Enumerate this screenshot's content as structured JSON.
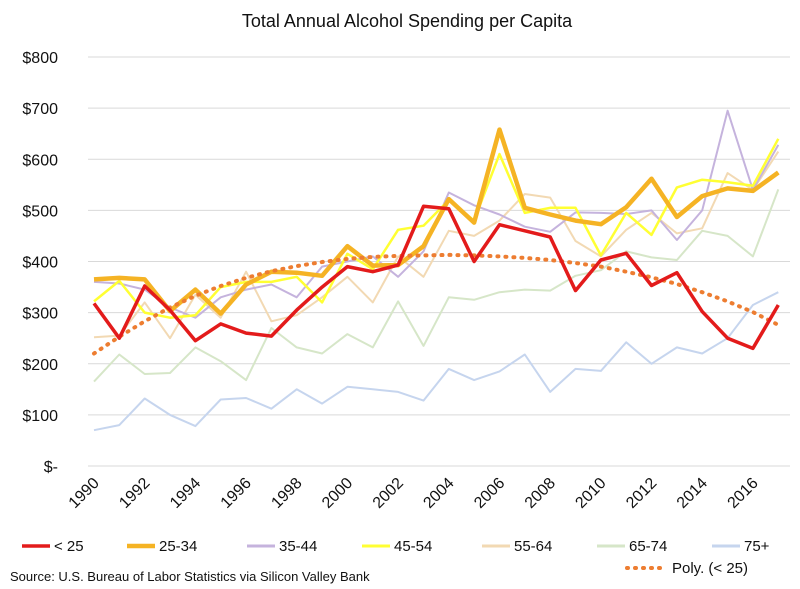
{
  "chart_data": {
    "type": "line",
    "title": "Total Annual Alcohol Spending per Capita",
    "xlabel": "",
    "ylabel": "",
    "ylim": [
      0,
      800
    ],
    "yticks": [
      0,
      100,
      200,
      300,
      400,
      500,
      600,
      700,
      800
    ],
    "ytick_labels": [
      "$-",
      "$100",
      "$200",
      "$300",
      "$400",
      "$500",
      "$600",
      "$700",
      "$800"
    ],
    "x": [
      1990,
      1991,
      1992,
      1993,
      1994,
      1995,
      1996,
      1997,
      1998,
      1999,
      2000,
      2001,
      2002,
      2003,
      2004,
      2005,
      2006,
      2007,
      2008,
      2009,
      2010,
      2011,
      2012,
      2013,
      2014,
      2015,
      2016,
      2017
    ],
    "xtick_labels": [
      "1990",
      "1992",
      "1994",
      "1996",
      "1998",
      "2000",
      "2002",
      "2004",
      "2006",
      "2008",
      "2010",
      "2012",
      "2014",
      "2016"
    ],
    "grid": true,
    "legend_position": "bottom",
    "series": [
      {
        "name": "< 25",
        "color": "#e31b1b",
        "width": 3.5,
        "values": [
          318,
          250,
          352,
          305,
          245,
          278,
          260,
          254,
          305,
          350,
          390,
          380,
          393,
          508,
          503,
          400,
          472,
          460,
          448,
          343,
          403,
          416,
          353,
          378,
          302,
          250,
          230,
          315
        ]
      },
      {
        "name": "25-34",
        "color": "#f5b324",
        "width": 4.5,
        "values": [
          365,
          368,
          365,
          303,
          345,
          298,
          355,
          380,
          378,
          372,
          430,
          392,
          393,
          430,
          522,
          476,
          658,
          505,
          492,
          480,
          473,
          506,
          562,
          487,
          528,
          543,
          538,
          574
        ]
      },
      {
        "name": "35-44",
        "color": "#c5b3dd",
        "width": 2,
        "values": [
          360,
          357,
          345,
          310,
          290,
          330,
          345,
          355,
          330,
          390,
          400,
          410,
          370,
          420,
          535,
          510,
          492,
          468,
          458,
          496,
          495,
          493,
          500,
          442,
          500,
          695,
          540,
          628
        ]
      },
      {
        "name": "45-54",
        "color": "#ffff33",
        "width": 2.5,
        "values": [
          322,
          362,
          300,
          290,
          295,
          350,
          360,
          360,
          370,
          320,
          415,
          385,
          462,
          470,
          520,
          480,
          610,
          495,
          505,
          505,
          412,
          495,
          452,
          545,
          560,
          555,
          548,
          640
        ]
      },
      {
        "name": "55-64",
        "color": "#f2d9b3",
        "width": 2,
        "values": [
          252,
          255,
          320,
          250,
          335,
          290,
          380,
          283,
          295,
          330,
          370,
          320,
          410,
          370,
          460,
          450,
          480,
          532,
          525,
          440,
          410,
          462,
          495,
          455,
          465,
          573,
          540,
          615
        ]
      },
      {
        "name": "65-74",
        "color": "#d6e6c8",
        "width": 2,
        "values": [
          165,
          218,
          180,
          182,
          232,
          205,
          168,
          270,
          232,
          220,
          258,
          232,
          322,
          235,
          330,
          325,
          340,
          345,
          343,
          372,
          383,
          420,
          408,
          403,
          460,
          450,
          410,
          541
        ]
      },
      {
        "name": "75+",
        "color": "#c6d5ee",
        "width": 2,
        "values": [
          70,
          80,
          132,
          100,
          78,
          130,
          133,
          112,
          150,
          122,
          155,
          150,
          145,
          128,
          190,
          168,
          185,
          218,
          145,
          190,
          186,
          242,
          200,
          232,
          220,
          250,
          315,
          340
        ]
      }
    ],
    "trendline": {
      "name": "Poly. (< 25)",
      "color": "#ed7d31",
      "values": [
        220,
        253,
        283,
        310,
        333,
        352,
        368,
        381,
        391,
        399,
        405,
        409,
        411,
        412,
        413,
        412,
        410,
        407,
        403,
        397,
        390,
        380,
        369,
        356,
        340,
        322,
        301,
        276
      ]
    },
    "source": "Source: U.S. Bureau of Labor Statistics via Silicon Valley Bank"
  }
}
